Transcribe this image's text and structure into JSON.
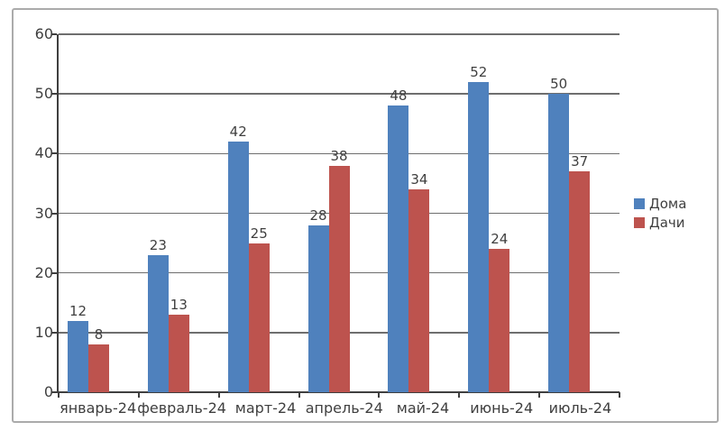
{
  "chart_data": {
    "type": "bar",
    "title": "",
    "xlabel": "",
    "ylabel": "",
    "categories": [
      "январь-24",
      "февраль-24",
      "март-24",
      "апрель-24",
      "май-24",
      "июнь-24",
      "июль-24"
    ],
    "series": [
      {
        "name": "Дома",
        "color": "#4F81BD",
        "values": [
          12,
          23,
          42,
          28,
          48,
          52,
          50
        ]
      },
      {
        "name": "Дачи",
        "color": "#BD534E",
        "values": [
          8,
          13,
          25,
          38,
          34,
          24,
          37
        ]
      }
    ],
    "yticks": [
      0,
      10,
      20,
      30,
      40,
      50,
      60
    ],
    "ylim": [
      0,
      60
    ],
    "grid": true,
    "data_labels": true,
    "legend_position": "right"
  },
  "colors": {
    "axis": "#3F3F3F",
    "gridline": "#6E6E6E",
    "text": "#3F3F3F",
    "frame_border": "#ABABAB"
  }
}
